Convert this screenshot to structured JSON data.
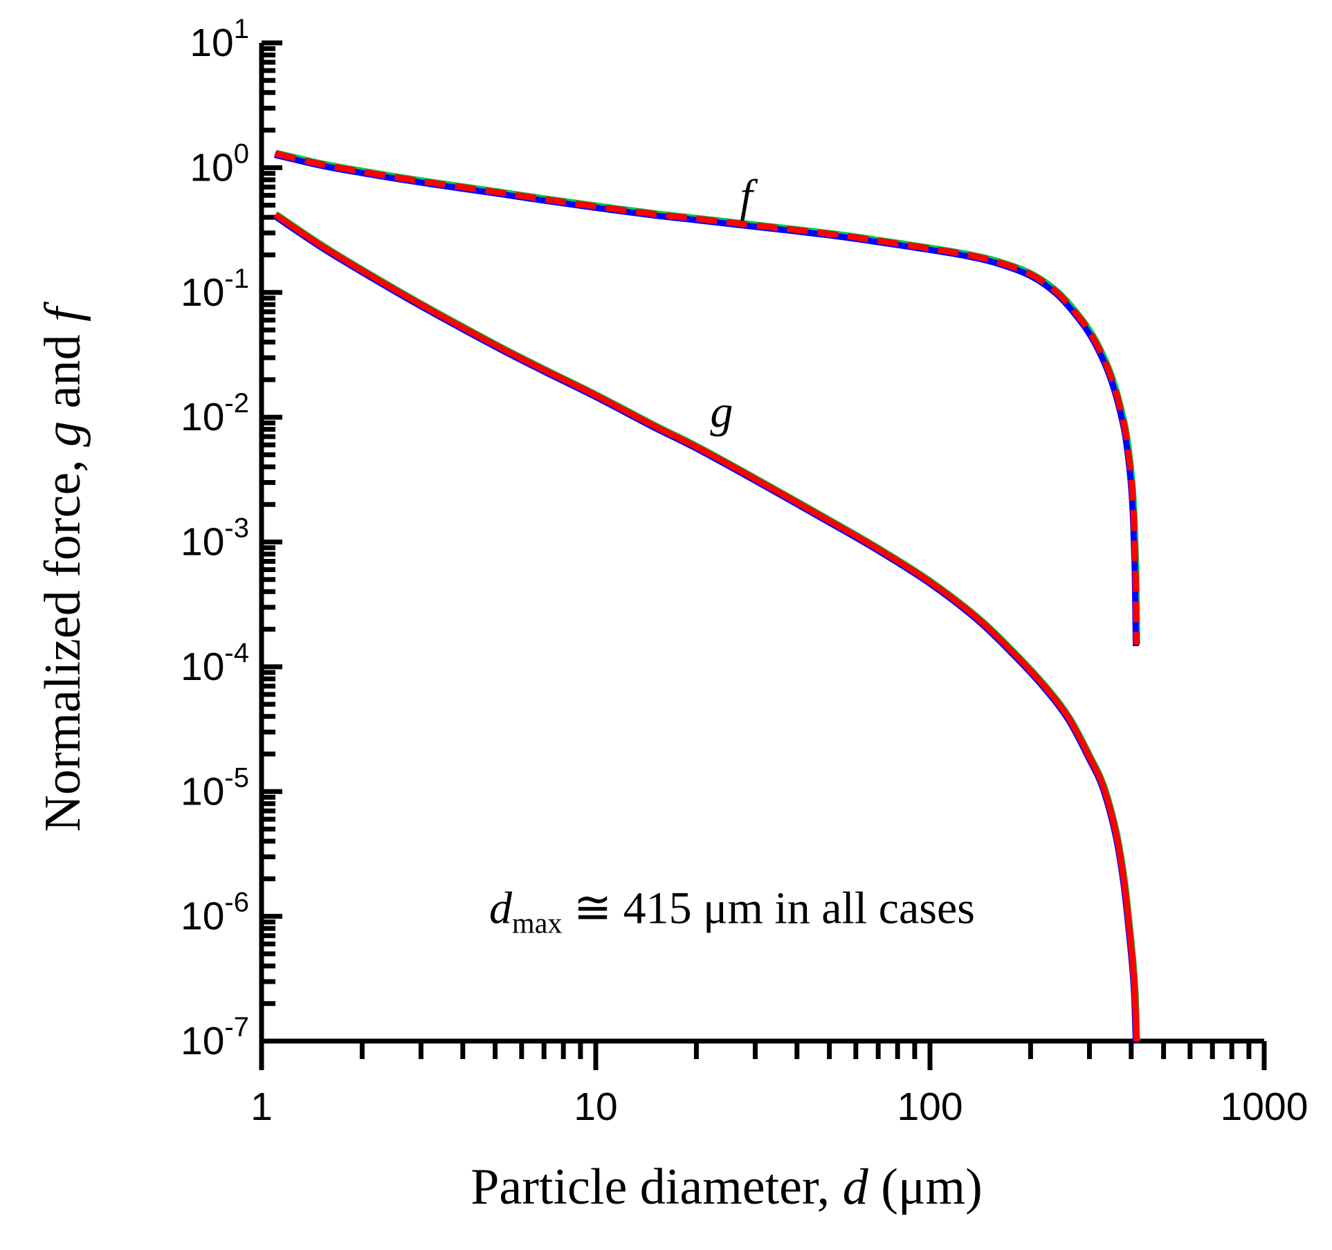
{
  "chart_data": {
    "type": "line",
    "x_scale": "log",
    "y_scale": "log",
    "xlim": [
      1,
      1000
    ],
    "ylim": [
      1e-07,
      10
    ],
    "x_ticks": [
      {
        "value": 1,
        "label": "1"
      },
      {
        "value": 10,
        "label": "10"
      },
      {
        "value": 100,
        "label": "100"
      },
      {
        "value": 1000,
        "label": "1000"
      }
    ],
    "y_ticks": [
      {
        "exp": 1,
        "base": "10",
        "sup": "1"
      },
      {
        "exp": 0,
        "base": "10",
        "sup": "0"
      },
      {
        "exp": -1,
        "base": "10",
        "sup": "-1"
      },
      {
        "exp": -2,
        "base": "10",
        "sup": "-2"
      },
      {
        "exp": -3,
        "base": "10",
        "sup": "-3"
      },
      {
        "exp": -4,
        "base": "10",
        "sup": "-4"
      },
      {
        "exp": -5,
        "base": "10",
        "sup": "-5"
      },
      {
        "exp": -6,
        "base": "10",
        "sup": "-6"
      },
      {
        "exp": -7,
        "base": "10",
        "sup": "-7"
      }
    ],
    "xlabel": {
      "prefix": "Particle diameter, ",
      "var": "d",
      "suffix": " (μm)"
    },
    "ylabel": {
      "prefix": "Normalized force, ",
      "var1": "g",
      "mid": " and ",
      "var2": "f"
    },
    "grid": false,
    "series": [
      {
        "name": "f",
        "style": "dashed",
        "color": "#ff0000",
        "underlay_colors": [
          "#00cc44",
          "#0000ff"
        ],
        "x": [
          1.1,
          1.5,
          2,
          3,
          5,
          7,
          10,
          15,
          20,
          30,
          50,
          70,
          100,
          130,
          160,
          200,
          240,
          280,
          310,
          340,
          360,
          375,
          385,
          395,
          402,
          407,
          410,
          412,
          413,
          414,
          415
        ],
        "y": [
          1.3,
          1.07,
          0.93,
          0.78,
          0.64,
          0.56,
          0.49,
          0.425,
          0.39,
          0.345,
          0.295,
          0.26,
          0.225,
          0.2,
          0.175,
          0.14,
          0.1,
          0.063,
          0.042,
          0.025,
          0.016,
          0.0105,
          0.0075,
          0.0045,
          0.0028,
          0.0016,
          0.0009,
          0.0006,
          0.0004,
          0.00025,
          0.00015
        ]
      },
      {
        "name": "g",
        "style": "solid",
        "color": "#ff0000",
        "underlay_colors": [
          "#00cc44",
          "#0000ff"
        ],
        "x": [
          1.1,
          1.5,
          2,
          3,
          5,
          7,
          10,
          15,
          20,
          30,
          50,
          70,
          100,
          140,
          180,
          220,
          260,
          300,
          330,
          360,
          380,
          395,
          405,
          410,
          412,
          413.5,
          414.5,
          415
        ],
        "y": [
          0.42,
          0.24,
          0.15,
          0.08,
          0.038,
          0.024,
          0.015,
          0.0085,
          0.0058,
          0.0032,
          0.00148,
          0.00088,
          0.00048,
          0.00024,
          0.000125,
          7e-05,
          3.9e-05,
          1.9e-05,
          1.1e-05,
          4.7e-06,
          2e-06,
          8e-07,
          4e-07,
          2.5e-07,
          1.8e-07,
          1.3e-07,
          1.1e-07,
          1e-07
        ]
      }
    ],
    "annotations": [
      {
        "id": "f",
        "text": "f",
        "x": 27,
        "y": 0.62
      },
      {
        "id": "g",
        "text": "g",
        "x": 22,
        "y": 0.0115
      },
      {
        "id": "dmax",
        "var": "d",
        "sub": "max",
        "rest": " ≅ 415 μm in all cases",
        "x": 4.8,
        "y": 1.2e-06
      }
    ]
  }
}
